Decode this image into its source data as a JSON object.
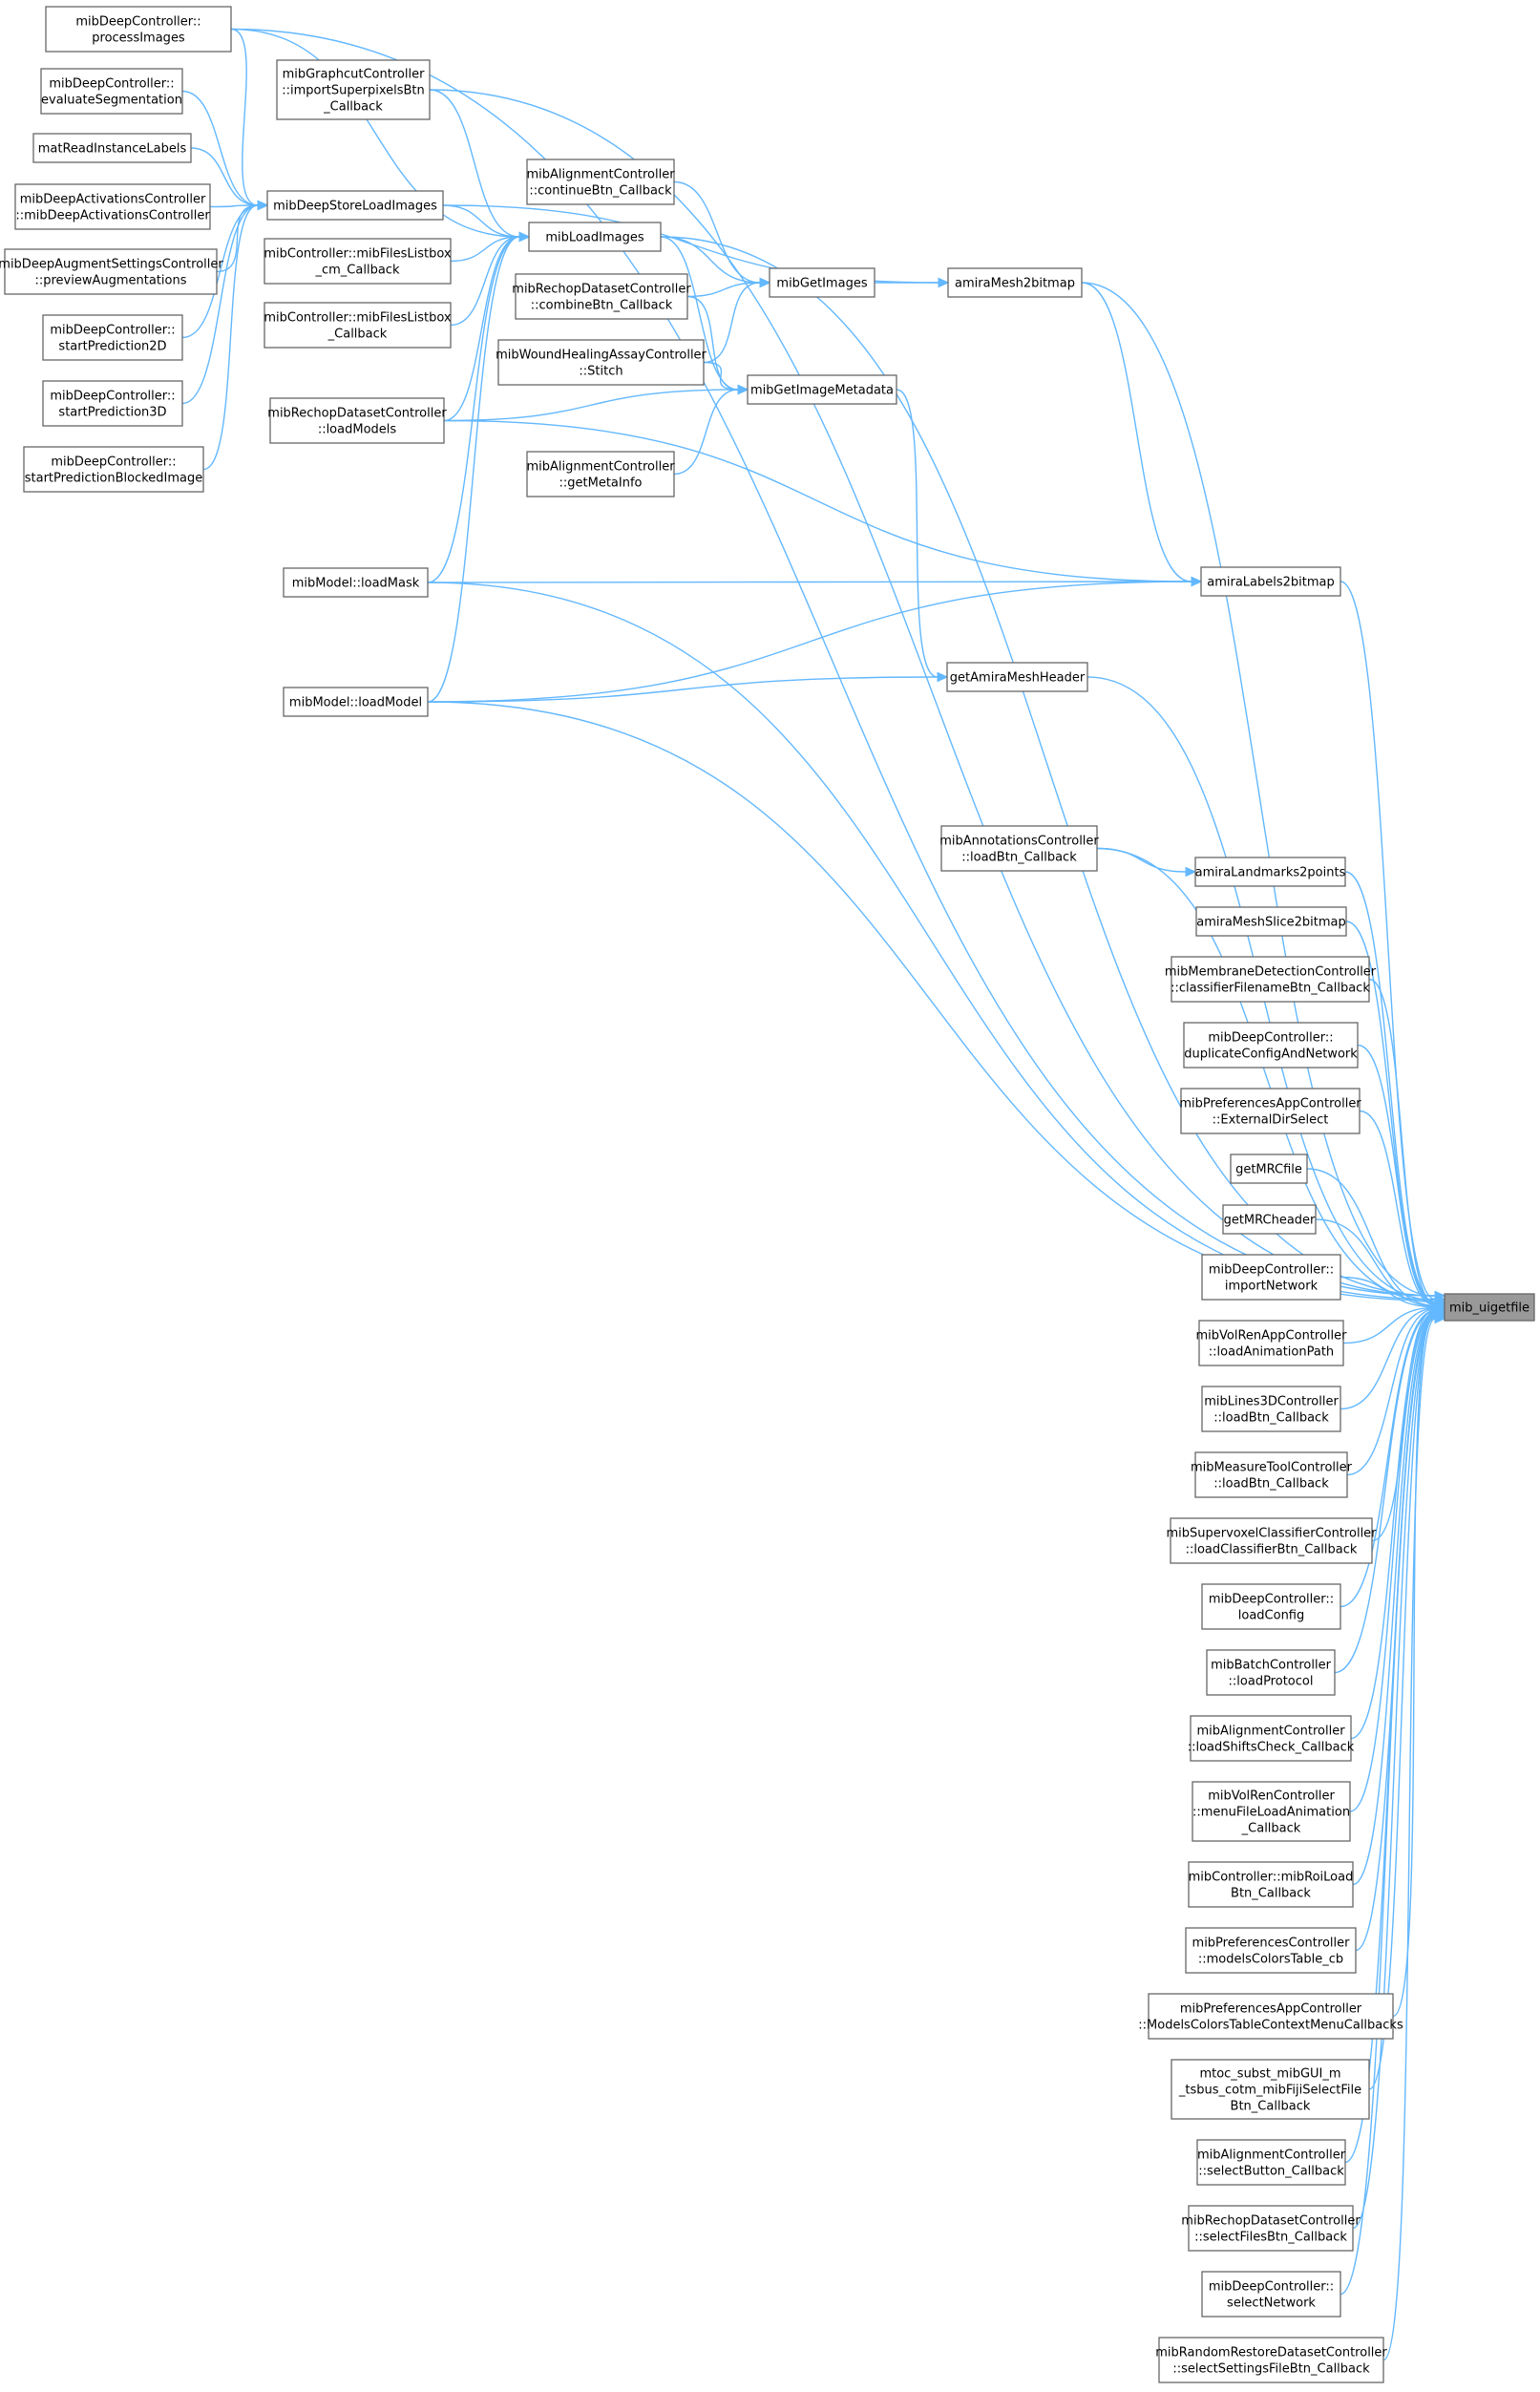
{
  "colors": {
    "edge": "#63b8ff",
    "node_border": "#666666",
    "target_fill": "#999999",
    "node_fill": "#ffffff"
  },
  "nodes": {
    "processImages": [
      "mibDeepController::",
      "processImages"
    ],
    "evaluateSegmentation": [
      "mibDeepController::",
      "evaluateSegmentation"
    ],
    "matReadInstanceLabels": [
      "matReadInstanceLabels"
    ],
    "mibDeepActivationsController": [
      "mibDeepActivationsController",
      "::mibDeepActivationsController"
    ],
    "previewAugmentations": [
      "mibDeepAugmentSettingsController",
      "::previewAugmentations"
    ],
    "startPrediction2D": [
      "mibDeepController::",
      "startPrediction2D"
    ],
    "startPrediction3D": [
      "mibDeepController::",
      "startPrediction3D"
    ],
    "startPredictionBlockedImage": [
      "mibDeepController::",
      "startPredictionBlockedImage"
    ],
    "importSuperpixelsBtn": [
      "mibGraphcutController",
      "::importSuperpixelsBtn",
      "_Callback"
    ],
    "mibDeepStoreLoadImages": [
      "mibDeepStoreLoadImages"
    ],
    "mibFilesListbox_cm": [
      "mibController::mibFilesListbox",
      "_cm_Callback"
    ],
    "mibFilesListbox": [
      "mibController::mibFilesListbox",
      "_Callback"
    ],
    "rechopLoadModels": [
      "mibRechopDatasetController",
      "::loadModels"
    ],
    "loadMask": [
      "mibModel::loadMask"
    ],
    "loadModel": [
      "mibModel::loadModel"
    ],
    "continueBtn": [
      "mibAlignmentController",
      "::continueBtn_Callback"
    ],
    "mibLoadImages": [
      "mibLoadImages"
    ],
    "combineBtn": [
      "mibRechopDatasetController",
      "::combineBtn_Callback"
    ],
    "stitch": [
      "mibWoundHealingAssayController",
      "::Stitch"
    ],
    "getMetaInfo": [
      "mibAlignmentController",
      "::getMetaInfo"
    ],
    "mibGetImages": [
      "mibGetImages"
    ],
    "mibGetImageMetadata": [
      "mibGetImageMetadata"
    ],
    "amiraMesh2bitmap": [
      "amiraMesh2bitmap"
    ],
    "amiraLabels2bitmap": [
      "amiraLabels2bitmap"
    ],
    "getAmiraMeshHeader": [
      "getAmiraMeshHeader"
    ],
    "annotationsLoadBtn": [
      "mibAnnotationsController",
      "::loadBtn_Callback"
    ],
    "amiraLandmarks2points": [
      "amiraLandmarks2points"
    ],
    "amiraMeshSlice2bitmap": [
      "amiraMeshSlice2bitmap"
    ],
    "classifierFilenameBtn": [
      "mibMembraneDetectionController",
      "::classifierFilenameBtn_Callback"
    ],
    "duplicateConfigAndNetwork": [
      "mibDeepController::",
      "duplicateConfigAndNetwork"
    ],
    "externalDirSelect": [
      "mibPreferencesAppController",
      "::ExternalDirSelect"
    ],
    "getMRCfile": [
      "getMRCfile"
    ],
    "getMRCheader": [
      "getMRCheader"
    ],
    "importNetwork": [
      "mibDeepController::",
      "importNetwork"
    ],
    "loadAnimationPath": [
      "mibVolRenAppController",
      "::loadAnimationPath"
    ],
    "lines3dLoadBtn": [
      "mibLines3DController",
      "::loadBtn_Callback"
    ],
    "measureLoadBtn": [
      "mibMeasureToolController",
      "::loadBtn_Callback"
    ],
    "loadClassifierBtn": [
      "mibSupervoxelClassifierController",
      "::loadClassifierBtn_Callback"
    ],
    "loadConfig": [
      "mibDeepController::",
      "loadConfig"
    ],
    "loadProtocol": [
      "mibBatchController",
      "::loadProtocol"
    ],
    "loadShiftsCheck": [
      "mibAlignmentController",
      "::loadShiftsCheck_Callback"
    ],
    "menuFileLoadAnimation": [
      "mibVolRenController",
      "::menuFileLoadAnimation",
      "_Callback"
    ],
    "mibRoiLoadBtn": [
      "mibController::mibRoiLoad",
      "Btn_Callback"
    ],
    "modelsColorsTable_cb": [
      "mibPreferencesController",
      "::modelsColorsTable_cb"
    ],
    "modelsColorsTableContextMenu": [
      "mibPreferencesAppController",
      "::ModelsColorsTableContextMenuCallbacks"
    ],
    "mtocFijiSelectFile": [
      "mtoc_subst_mibGUI_m",
      "_tsbus_cotm_mibFijiSelectFile",
      "Btn_Callback"
    ],
    "selectButton": [
      "mibAlignmentController",
      "::selectButton_Callback"
    ],
    "selectFilesBtn": [
      "mibRechopDatasetController",
      "::selectFilesBtn_Callback"
    ],
    "selectNetwork": [
      "mibDeepController::",
      "selectNetwork"
    ],
    "selectSettingsFileBtn": [
      "mibRandomRestoreDatasetController",
      "::selectSettingsFileBtn_Callback"
    ],
    "mib_uigetfile": [
      "mib_uigetfile"
    ]
  },
  "edges": [
    [
      "processImages",
      "mibDeepStoreLoadImages"
    ],
    [
      "evaluateSegmentation",
      "mibDeepStoreLoadImages"
    ],
    [
      "matReadInstanceLabels",
      "mibDeepStoreLoadImages"
    ],
    [
      "mibDeepActivationsController",
      "mibDeepStoreLoadImages"
    ],
    [
      "previewAugmentations",
      "mibDeepStoreLoadImages"
    ],
    [
      "startPrediction2D",
      "mibDeepStoreLoadImages"
    ],
    [
      "startPrediction3D",
      "mibDeepStoreLoadImages"
    ],
    [
      "startPredictionBlockedImage",
      "mibDeepStoreLoadImages"
    ],
    [
      "mibDeepStoreLoadImages",
      "mibLoadImages"
    ],
    [
      "processImages",
      "mibLoadImages"
    ],
    [
      "importSuperpixelsBtn",
      "mibLoadImages"
    ],
    [
      "mibFilesListbox_cm",
      "mibLoadImages"
    ],
    [
      "mibFilesListbox",
      "mibLoadImages"
    ],
    [
      "rechopLoadModels",
      "mibLoadImages"
    ],
    [
      "loadMask",
      "mibLoadImages"
    ],
    [
      "loadModel",
      "mibLoadImages"
    ],
    [
      "continueBtn",
      "mibGetImages"
    ],
    [
      "mibLoadImages",
      "mibGetImages"
    ],
    [
      "combineBtn",
      "mibGetImages"
    ],
    [
      "stitch",
      "mibGetImages"
    ],
    [
      "mibLoadImages",
      "mibGetImageMetadata"
    ],
    [
      "combineBtn",
      "mibGetImageMetadata"
    ],
    [
      "stitch",
      "mibGetImageMetadata"
    ],
    [
      "rechopLoadModels",
      "mibGetImageMetadata"
    ],
    [
      "getMetaInfo",
      "mibGetImageMetadata"
    ],
    [
      "mibGetImages",
      "amiraMesh2bitmap"
    ],
    [
      "mibDeepStoreLoadImages",
      "amiraMesh2bitmap"
    ],
    [
      "amiraMesh2bitmap",
      "amiraLabels2bitmap"
    ],
    [
      "loadMask",
      "amiraLabels2bitmap"
    ],
    [
      "loadModel",
      "amiraLabels2bitmap"
    ],
    [
      "rechopLoadModels",
      "amiraLabels2bitmap"
    ],
    [
      "mibGetImageMetadata",
      "getAmiraMeshHeader"
    ],
    [
      "loadModel",
      "getAmiraMeshHeader"
    ],
    [
      "annotationsLoadBtn",
      "amiraLandmarks2points"
    ],
    [
      "processImages",
      "mib_uigetfile"
    ],
    [
      "importSuperpixelsBtn",
      "mib_uigetfile"
    ],
    [
      "mibLoadImages",
      "mib_uigetfile"
    ],
    [
      "amiraMesh2bitmap",
      "mib_uigetfile"
    ],
    [
      "amiraLabels2bitmap",
      "mib_uigetfile"
    ],
    [
      "getAmiraMeshHeader",
      "mib_uigetfile"
    ],
    [
      "loadMask",
      "mib_uigetfile"
    ],
    [
      "loadModel",
      "mib_uigetfile"
    ],
    [
      "annotationsLoadBtn",
      "mib_uigetfile"
    ],
    [
      "amiraLandmarks2points",
      "mib_uigetfile"
    ],
    [
      "amiraMeshSlice2bitmap",
      "mib_uigetfile"
    ],
    [
      "classifierFilenameBtn",
      "mib_uigetfile"
    ],
    [
      "duplicateConfigAndNetwork",
      "mib_uigetfile"
    ],
    [
      "externalDirSelect",
      "mib_uigetfile"
    ],
    [
      "getMRCfile",
      "mib_uigetfile"
    ],
    [
      "getMRCheader",
      "mib_uigetfile"
    ],
    [
      "importNetwork",
      "mib_uigetfile"
    ],
    [
      "loadAnimationPath",
      "mib_uigetfile"
    ],
    [
      "lines3dLoadBtn",
      "mib_uigetfile"
    ],
    [
      "measureLoadBtn",
      "mib_uigetfile"
    ],
    [
      "loadClassifierBtn",
      "mib_uigetfile"
    ],
    [
      "loadConfig",
      "mib_uigetfile"
    ],
    [
      "loadProtocol",
      "mib_uigetfile"
    ],
    [
      "loadShiftsCheck",
      "mib_uigetfile"
    ],
    [
      "menuFileLoadAnimation",
      "mib_uigetfile"
    ],
    [
      "mibRoiLoadBtn",
      "mib_uigetfile"
    ],
    [
      "modelsColorsTable_cb",
      "mib_uigetfile"
    ],
    [
      "modelsColorsTableContextMenu",
      "mib_uigetfile"
    ],
    [
      "mtocFijiSelectFile",
      "mib_uigetfile"
    ],
    [
      "selectButton",
      "mib_uigetfile"
    ],
    [
      "selectFilesBtn",
      "mib_uigetfile"
    ],
    [
      "selectNetwork",
      "mib_uigetfile"
    ],
    [
      "selectSettingsFileBtn",
      "mib_uigetfile"
    ]
  ],
  "target": "mib_uigetfile"
}
